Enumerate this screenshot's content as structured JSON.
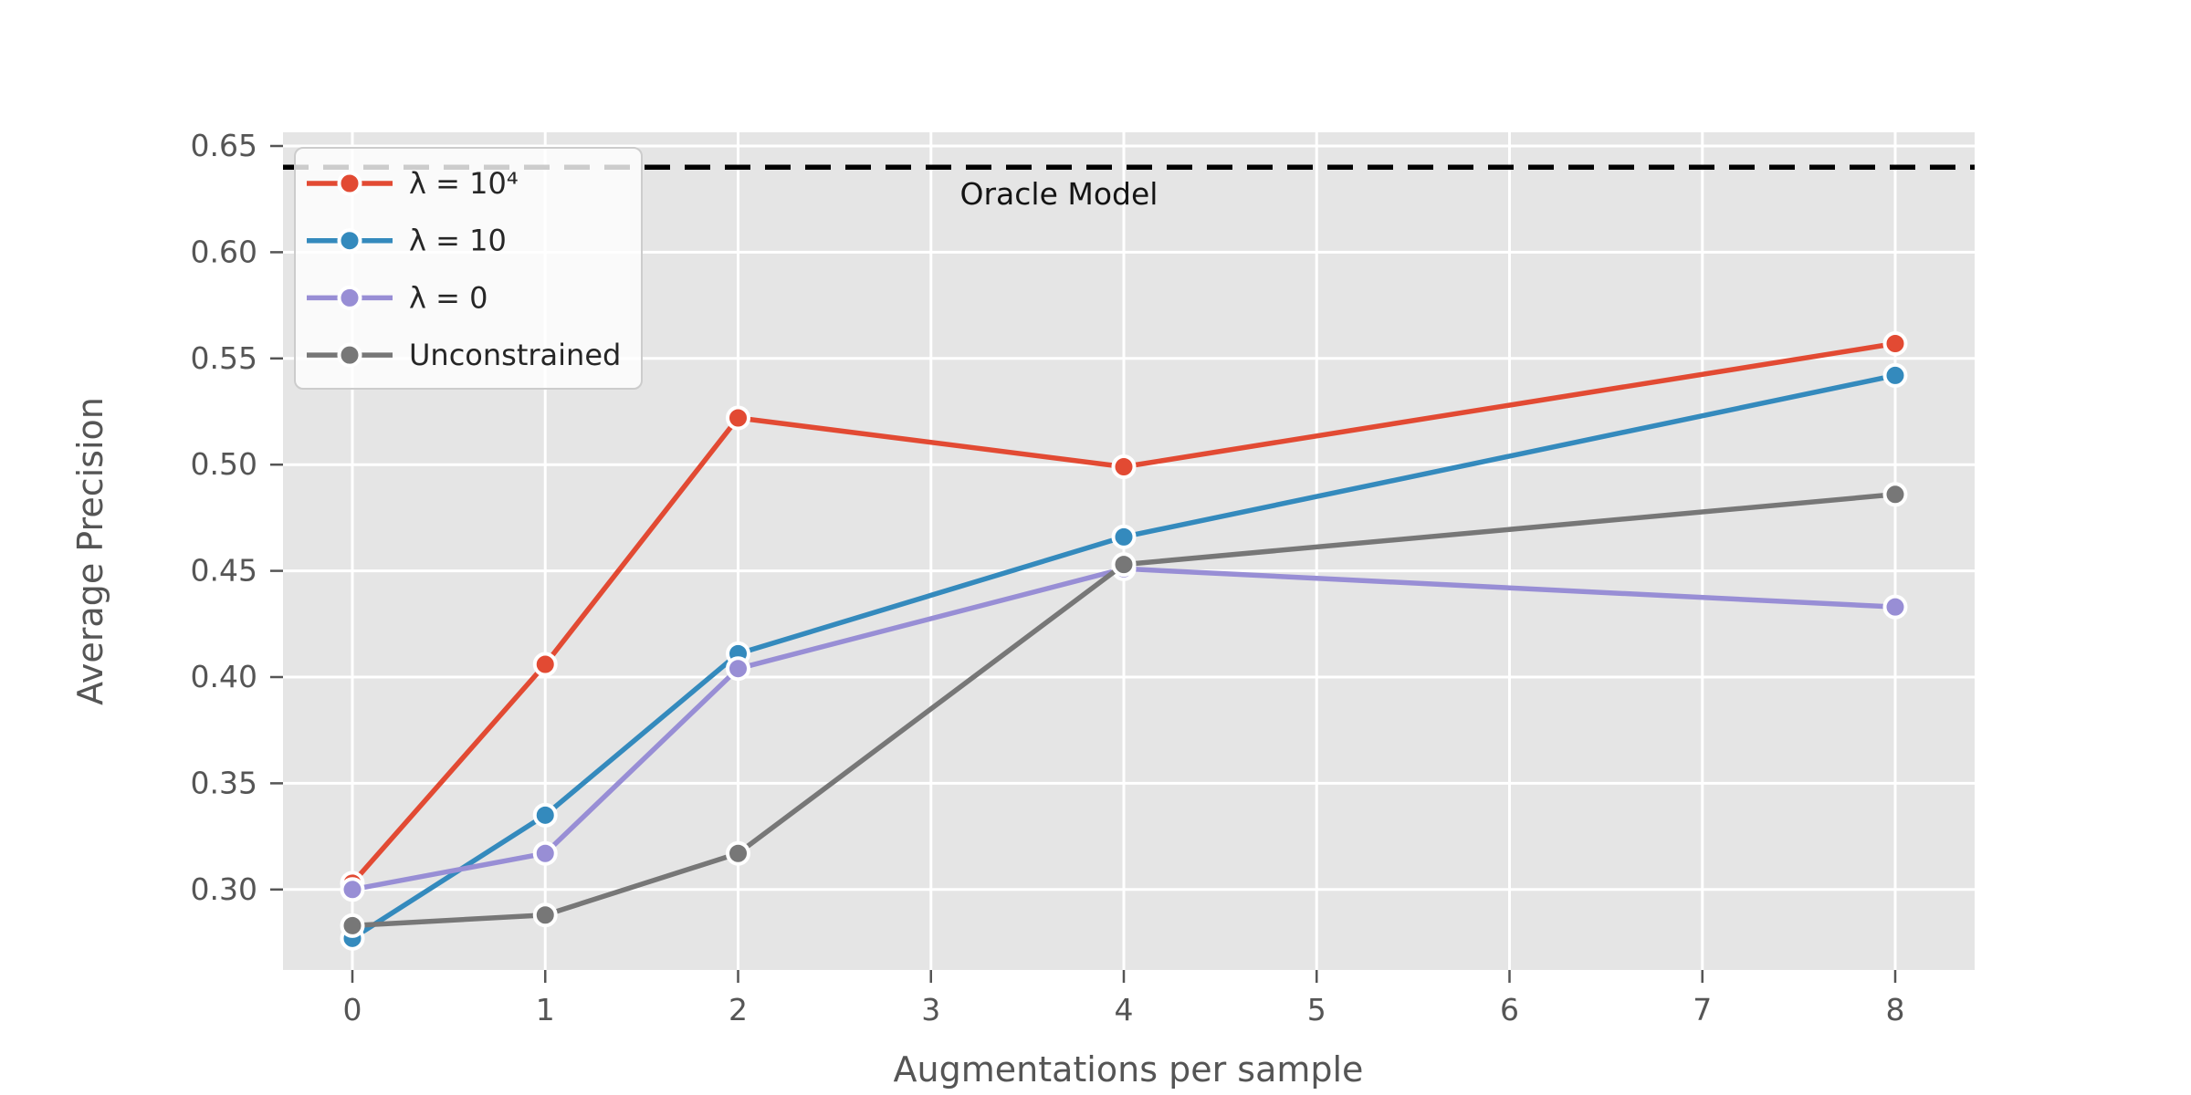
{
  "figure": {
    "background": "#ffffff",
    "plot_background": "#e5e5e5",
    "grid_color": "#ffffff",
    "tick_color": "#555555",
    "axis_label_color": "#555555",
    "legend_text_color": "#262626",
    "annotation_color": "#141414"
  },
  "chart_data": {
    "type": "line",
    "title": "",
    "xlabel": "Augmentations per sample",
    "ylabel": "Average Precision",
    "x": [
      0,
      1,
      2,
      4,
      8
    ],
    "series": [
      {
        "name": "λ = 10⁴",
        "color": "#e24a33",
        "values": [
          0.303,
          0.406,
          0.522,
          0.499,
          0.557
        ]
      },
      {
        "name": "λ = 10",
        "color": "#348abd",
        "values": [
          0.277,
          0.335,
          0.411,
          0.466,
          0.542
        ]
      },
      {
        "name": "λ = 0",
        "color": "#988ed5",
        "values": [
          0.3,
          0.317,
          0.404,
          0.451,
          0.433
        ]
      },
      {
        "name": "Unconstrained",
        "color": "#777777",
        "values": [
          0.283,
          0.288,
          0.317,
          0.453,
          0.486
        ]
      }
    ],
    "reference_line": {
      "label": "Oracle Model",
      "value": 0.64,
      "color": "#000000",
      "style": "dashed"
    },
    "xticks": {
      "values": [
        0,
        1,
        2,
        3,
        4,
        5,
        6,
        7,
        8
      ],
      "labels": [
        "0",
        "1",
        "2",
        "3",
        "4",
        "5",
        "6",
        "7",
        "8"
      ]
    },
    "yticks": {
      "values": [
        0.3,
        0.35,
        0.4,
        0.45,
        0.5,
        0.55,
        0.6,
        0.65
      ],
      "labels": [
        "0.30",
        "0.35",
        "0.40",
        "0.45",
        "0.50",
        "0.55",
        "0.60",
        "0.65"
      ]
    },
    "xlim": [
      -0.36,
      8.41
    ],
    "ylim": [
      0.262,
      0.656
    ],
    "grid": true,
    "legend_position": "upper left",
    "marker": "circle"
  }
}
